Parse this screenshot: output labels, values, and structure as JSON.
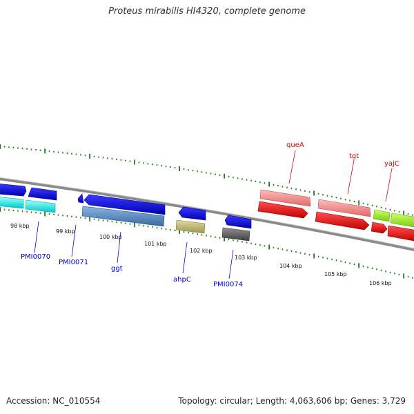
{
  "title": "Proteus mirabilis HI4320, complete genome",
  "footer": {
    "accession": "Accession: NC_010554",
    "summary": "Topology: circular; Length: 4,063,606 bp; Genes: 3,729"
  },
  "scale_labels": [
    "98 kbp",
    "99 kbp",
    "100 kbp",
    "101 kbp",
    "102 kbp",
    "103 kbp",
    "104 kbp",
    "105 kbp",
    "106 kbp"
  ],
  "genes": [
    {
      "name": "PMI0070",
      "color": "#0000cc"
    },
    {
      "name": "PMI0071",
      "color": "#0000cc"
    },
    {
      "name": "ggt",
      "color": "#0000cc"
    },
    {
      "name": "ahpC",
      "color": "#0000cc"
    },
    {
      "name": "PMI0074",
      "color": "#0000cc"
    },
    {
      "name": "queA",
      "color": "#cc0000"
    },
    {
      "name": "tgt",
      "color": "#cc0000"
    },
    {
      "name": "yajC",
      "color": "#cc0000"
    }
  ],
  "colors": {
    "blue_cds": "#1010e0",
    "cyan_cds": "#00e0e0",
    "steelblue_cds": "#5a8ac0",
    "khaki_cds": "#c0b870",
    "gray_cds": "#606060",
    "red_cds": "#ee0000",
    "pink_cds": "#f08888",
    "green_cds": "#99ee22",
    "backbone": "#8a8a8a",
    "ticks": "#227722"
  }
}
